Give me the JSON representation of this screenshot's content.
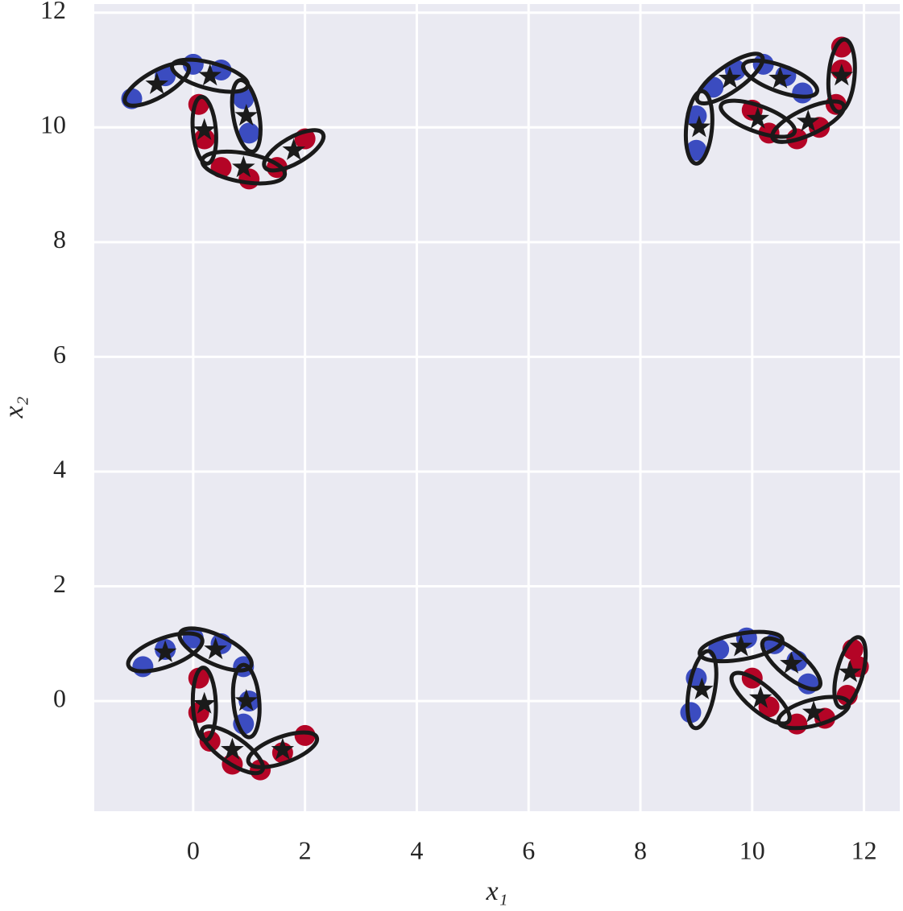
{
  "chart_data": {
    "type": "scatter",
    "xlabel": "x₁",
    "ylabel": "x₂",
    "xlim": [
      -1.77,
      12.64
    ],
    "ylim": [
      -1.92,
      12.15
    ],
    "xticks": [
      0,
      2,
      4,
      6,
      8,
      10,
      12
    ],
    "yticks": [
      0,
      2,
      4,
      6,
      8,
      10,
      12
    ],
    "grid": true,
    "series": [
      {
        "color": "#3b4cc0",
        "x": [
          -1.1,
          -0.5,
          0,
          0.5,
          0.9,
          1.0,
          -0.9,
          -0.5,
          0,
          0.5,
          0.9,
          1.0,
          0.9,
          9.0,
          9.0,
          9.3,
          9.7,
          10.2,
          10.6,
          10.9,
          8.9,
          9.0,
          9.4,
          9.9,
          10.4,
          10.8,
          11.0
        ],
        "y": [
          10.5,
          10.9,
          11.1,
          11.0,
          10.5,
          9.9,
          0.6,
          0.9,
          1.1,
          1.0,
          0.6,
          0.0,
          -0.4,
          9.6,
          10.2,
          10.7,
          11.0,
          11.1,
          10.9,
          10.6,
          -0.2,
          0.4,
          0.9,
          1.1,
          1.0,
          0.7,
          0.3
        ]
      },
      {
        "color": "#b40426",
        "x": [
          0.1,
          0.2,
          0.5,
          1.0,
          1.5,
          2.0,
          0.1,
          0.1,
          0.3,
          0.7,
          1.2,
          1.6,
          2.0,
          10.0,
          10.3,
          10.8,
          11.2,
          11.5,
          11.6,
          11.6,
          10.0,
          10.3,
          10.8,
          11.3,
          11.7,
          11.9,
          11.8
        ],
        "y": [
          10.4,
          9.8,
          9.3,
          9.1,
          9.3,
          9.8,
          0.4,
          -0.2,
          -0.7,
          -1.1,
          -1.2,
          -0.9,
          -0.6,
          10.3,
          9.9,
          9.8,
          10.0,
          10.4,
          11.0,
          11.4,
          0.4,
          -0.1,
          -0.4,
          -0.3,
          0.1,
          0.6,
          0.9
        ]
      }
    ],
    "ellipse_color": "#1a1a1a",
    "ellipses": [
      {
        "cx": -0.65,
        "cy": 10.75,
        "width": 1.3,
        "height": 0.45,
        "angle": 30
      },
      {
        "cx": 0.3,
        "cy": 10.9,
        "width": 1.4,
        "height": 0.45,
        "angle": -15
      },
      {
        "cx": 0.95,
        "cy": 10.2,
        "width": 1.3,
        "height": 0.45,
        "angle": -80
      },
      {
        "cx": 0.2,
        "cy": 9.95,
        "width": 1.2,
        "height": 0.4,
        "angle": -85
      },
      {
        "cx": 0.9,
        "cy": 9.3,
        "width": 1.5,
        "height": 0.5,
        "angle": -10
      },
      {
        "cx": 1.8,
        "cy": 9.6,
        "width": 1.2,
        "height": 0.45,
        "angle": 30
      },
      {
        "cx": -0.5,
        "cy": 0.85,
        "width": 1.4,
        "height": 0.5,
        "angle": 20
      },
      {
        "cx": 0.4,
        "cy": 0.9,
        "width": 1.4,
        "height": 0.5,
        "angle": -25
      },
      {
        "cx": 0.95,
        "cy": 0.0,
        "width": 1.3,
        "height": 0.45,
        "angle": -85
      },
      {
        "cx": 0.2,
        "cy": -0.05,
        "width": 1.3,
        "height": 0.4,
        "angle": -88
      },
      {
        "cx": 0.7,
        "cy": -0.85,
        "width": 1.3,
        "height": 0.45,
        "angle": -35
      },
      {
        "cx": 1.6,
        "cy": -0.85,
        "width": 1.3,
        "height": 0.45,
        "angle": 20
      },
      {
        "cx": 9.05,
        "cy": 10.0,
        "width": 1.3,
        "height": 0.45,
        "angle": 85
      },
      {
        "cx": 9.6,
        "cy": 10.85,
        "width": 1.4,
        "height": 0.45,
        "angle": 35
      },
      {
        "cx": 10.5,
        "cy": 10.85,
        "width": 1.4,
        "height": 0.45,
        "angle": -20
      },
      {
        "cx": 10.1,
        "cy": 10.15,
        "width": 1.4,
        "height": 0.45,
        "angle": -20
      },
      {
        "cx": 11.0,
        "cy": 10.1,
        "width": 1.4,
        "height": 0.45,
        "angle": 25
      },
      {
        "cx": 11.6,
        "cy": 10.9,
        "width": 1.3,
        "height": 0.45,
        "angle": 85
      },
      {
        "cx": 9.1,
        "cy": 0.2,
        "width": 1.4,
        "height": 0.45,
        "angle": 80
      },
      {
        "cx": 9.8,
        "cy": 0.95,
        "width": 1.5,
        "height": 0.45,
        "angle": 10
      },
      {
        "cx": 10.7,
        "cy": 0.65,
        "width": 1.3,
        "height": 0.45,
        "angle": -40
      },
      {
        "cx": 10.15,
        "cy": 0.05,
        "width": 1.3,
        "height": 0.45,
        "angle": -40
      },
      {
        "cx": 11.1,
        "cy": -0.2,
        "width": 1.3,
        "height": 0.45,
        "angle": 15
      },
      {
        "cx": 11.75,
        "cy": 0.5,
        "width": 1.3,
        "height": 0.45,
        "angle": 75
      }
    ]
  }
}
